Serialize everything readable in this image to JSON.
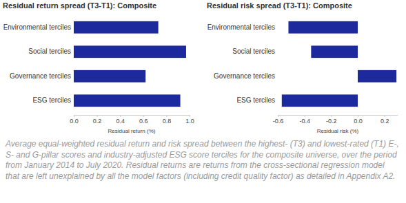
{
  "chart_data": [
    {
      "type": "bar",
      "orientation": "horizontal",
      "title": "Residual return spread (T3-T1): Composite",
      "categories": [
        "Environmental terciles",
        "Social terciles",
        "Governance terciles",
        "ESG terciles"
      ],
      "values": [
        0.73,
        0.97,
        0.62,
        0.92
      ],
      "color": "#1c2a9e",
      "x_label": "Residual return (%)",
      "xlim": [
        0,
        1.0
      ],
      "xticks": [
        {
          "value": 0,
          "label": "0.0"
        },
        0.2,
        0.4,
        0.6,
        0.8,
        {
          "value": 1.0,
          "label": "1.0"
        }
      ],
      "grid": false
    },
    {
      "type": "bar",
      "orientation": "horizontal",
      "title": "Residual risk spread (T3-T1): Composite",
      "categories": [
        "Environmental terciles",
        "Social terciles",
        "Governance terciles",
        "ESG terciles"
      ],
      "values": [
        -0.52,
        -0.35,
        0.29,
        -0.57
      ],
      "color": "#1c2a9e",
      "x_label": "Residual risk (%)",
      "xlim": [
        -0.6,
        0.3
      ],
      "xticks": [
        -0.6,
        -0.4,
        -0.2,
        {
          "value": 0,
          "label": "0.0"
        },
        0.2
      ],
      "grid": false
    }
  ],
  "caption": "Average equal-weighted residual return and risk spread between the highest- (T3) and lowest-rated (T1) E-, S- and G-pillar scores and industry-adjusted ESG score terciles for the composite universe, over the period from January 2014 to July 2020. Residual returns are returns from the cross-sectional regression model that are left unexplained by all the model factors (including credit quality factor) as detailed in Appendix A2."
}
